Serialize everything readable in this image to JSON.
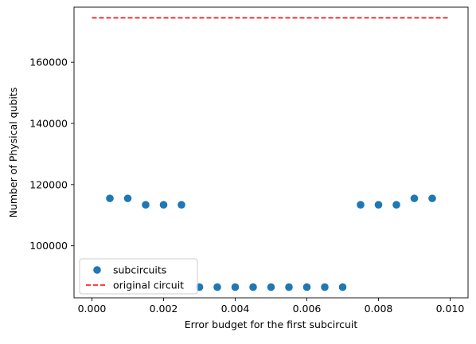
{
  "chart_data": {
    "type": "scatter",
    "xlabel": "Error budget for the first subcircuit",
    "ylabel": "Number of Physical qubits",
    "xlim": [
      -0.0005,
      0.0105
    ],
    "ylim": [
      83000,
      178000
    ],
    "x_ticks": [
      0.0,
      0.002,
      0.004,
      0.006,
      0.008,
      0.01
    ],
    "x_tick_labels": [
      "0.000",
      "0.002",
      "0.004",
      "0.006",
      "0.008",
      "0.010"
    ],
    "y_ticks": [
      100000,
      120000,
      140000,
      160000
    ],
    "y_tick_labels": [
      "100000",
      "120000",
      "140000",
      "160000"
    ],
    "grid": false,
    "legend_position": "lower-left",
    "series": [
      {
        "name": "subcircuits",
        "kind": "scatter",
        "color": "#1f77b4",
        "x": [
          0.0005,
          0.001,
          0.0015,
          0.002,
          0.0025,
          0.003,
          0.0035,
          0.004,
          0.0045,
          0.005,
          0.0055,
          0.006,
          0.0065,
          0.007,
          0.0075,
          0.008,
          0.0085,
          0.009,
          0.0095
        ],
        "y": [
          115500,
          115500,
          113400,
          113400,
          113400,
          86500,
          86500,
          86500,
          86500,
          86500,
          86500,
          86500,
          86500,
          86500,
          113400,
          113400,
          113400,
          115500,
          115500
        ]
      },
      {
        "name": "original circuit",
        "kind": "dashed-line",
        "color": "#ff0000",
        "x": [
          0.0,
          0.01
        ],
        "y": [
          174500,
          174500
        ]
      }
    ]
  }
}
